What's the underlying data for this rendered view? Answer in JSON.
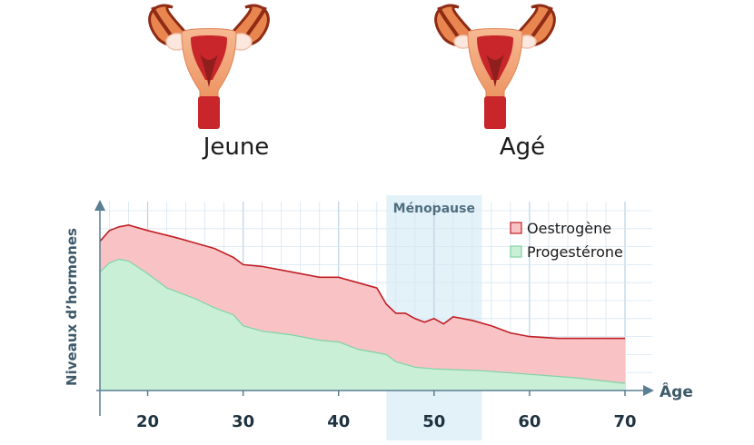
{
  "illustrations": {
    "young_label": "Jeune",
    "old_label": "Agé"
  },
  "chart_data": {
    "type": "area",
    "title": "",
    "xlabel": "Âge",
    "ylabel": "Niveaux d’hormones",
    "xlim": [
      15,
      70
    ],
    "ylim": [
      0,
      10
    ],
    "x_ticks": [
      20,
      30,
      40,
      50,
      60,
      70
    ],
    "grid": true,
    "legend_position": "top-right",
    "highlight_band": {
      "label": "Ménopause",
      "x_from": 45,
      "x_to": 55
    },
    "series": [
      {
        "name": "Oestrogène",
        "color": "#f9c3c5",
        "line_color": "#c01f24",
        "points": [
          [
            15,
            8.3
          ],
          [
            16,
            8.9
          ],
          [
            17,
            9.1
          ],
          [
            18,
            9.2
          ],
          [
            20,
            8.9
          ],
          [
            23,
            8.5
          ],
          [
            25,
            8.2
          ],
          [
            27,
            7.9
          ],
          [
            29,
            7.4
          ],
          [
            30,
            7.0
          ],
          [
            32,
            6.9
          ],
          [
            35,
            6.6
          ],
          [
            38,
            6.3
          ],
          [
            40,
            6.3
          ],
          [
            42,
            6.0
          ],
          [
            44,
            5.7
          ],
          [
            45,
            4.8
          ],
          [
            46,
            4.3
          ],
          [
            47,
            4.3
          ],
          [
            48,
            4.0
          ],
          [
            49,
            3.8
          ],
          [
            50,
            4.0
          ],
          [
            51,
            3.7
          ],
          [
            52,
            4.1
          ],
          [
            54,
            3.9
          ],
          [
            56,
            3.6
          ],
          [
            58,
            3.2
          ],
          [
            60,
            3.0
          ],
          [
            63,
            2.9
          ],
          [
            66,
            2.9
          ],
          [
            68,
            2.9
          ],
          [
            70,
            2.9
          ]
        ]
      },
      {
        "name": "Progestérone",
        "color": "#c9efd6",
        "line_color": "#7fd3a4",
        "points": [
          [
            15,
            6.6
          ],
          [
            16,
            7.1
          ],
          [
            17,
            7.3
          ],
          [
            18,
            7.2
          ],
          [
            20,
            6.5
          ],
          [
            22,
            5.7
          ],
          [
            25,
            5.1
          ],
          [
            27,
            4.6
          ],
          [
            29,
            4.2
          ],
          [
            30,
            3.6
          ],
          [
            32,
            3.3
          ],
          [
            35,
            3.1
          ],
          [
            38,
            2.8
          ],
          [
            40,
            2.7
          ],
          [
            42,
            2.3
          ],
          [
            44,
            2.1
          ],
          [
            45,
            2.0
          ],
          [
            46,
            1.6
          ],
          [
            48,
            1.3
          ],
          [
            50,
            1.2
          ],
          [
            55,
            1.1
          ],
          [
            60,
            0.9
          ],
          [
            65,
            0.7
          ],
          [
            70,
            0.4
          ]
        ]
      }
    ]
  }
}
